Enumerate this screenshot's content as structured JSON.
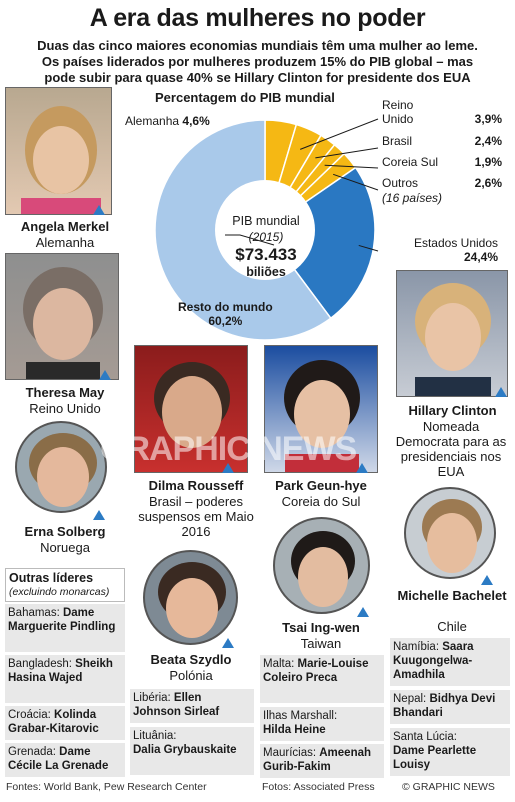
{
  "header": {
    "title": "A era das mulheres no poder",
    "subtitle_lines": [
      "Duas das cinco maiores economias mundiais têm uma mulher ao leme.",
      "Os países liderados por mulheres produzem 15% do PIB global – mas",
      "pode subir para quase 40% se Hillary Clinton for presidente dos EUA"
    ]
  },
  "chart_data": {
    "type": "pie",
    "title": "Percentagem do PIB mundial",
    "center_label": "PIB mundial",
    "center_year": "(2015)",
    "center_value": "$73.433",
    "center_unit": "biliões",
    "slices": [
      {
        "label": "Alemanha",
        "value": 4.6,
        "display": "4,6%",
        "color": "#f5b814"
      },
      {
        "label": "Reino Unido",
        "value": 3.9,
        "display": "3,9%",
        "color": "#f5b814"
      },
      {
        "label": "Brasil",
        "value": 2.4,
        "display": "2,4%",
        "color": "#f5b814"
      },
      {
        "label": "Coreia Sul",
        "value": 1.9,
        "display": "1,9%",
        "color": "#f5b814"
      },
      {
        "label": "Outros",
        "value": 2.6,
        "display": "2,6%",
        "color": "#f5b814",
        "note": "(16 países)"
      },
      {
        "label": "Estados Unidos",
        "value": 24.4,
        "display": "24,4%",
        "color": "#2a78c2"
      },
      {
        "label": "Resto do mundo",
        "value": 60.2,
        "display": "60,2%",
        "color": "#a9c9ea"
      }
    ]
  },
  "leaders": {
    "merkel": {
      "name": "Angela Merkel",
      "country": "Alemanha"
    },
    "may": {
      "name": "Theresa May",
      "country": "Reino Unido"
    },
    "solberg": {
      "name": "Erna Solberg",
      "country": "Noruega"
    },
    "clinton": {
      "name": "Hillary Clinton",
      "role": "Nomeada Democrata para as presidenciais nos EUA"
    },
    "rousseff": {
      "name": "Dilma Rousseff",
      "role": "Brasil – poderes suspensos em Maio 2016"
    },
    "park": {
      "name": "Park Geun-hye",
      "country": "Coreia do Sul"
    },
    "szydlo": {
      "name": "Beata Szydlo",
      "country": "Polónia"
    },
    "tsai": {
      "name": "Tsai Ing-wen",
      "country": "Taiwan"
    },
    "bachelet": {
      "name": "Michelle Bachelet",
      "country": "Chile"
    }
  },
  "other_leaders": {
    "heading": "Outras líderes",
    "note": "(excluindo monarcas)",
    "items": [
      {
        "country": "Bahamas:",
        "name": "Dame Marguerite Pindling"
      },
      {
        "country": "Bangladesh:",
        "name": "Sheikh Hasina Wajed"
      },
      {
        "country": "Croácia:",
        "name": "Kolinda Grabar-Kitarovic"
      },
      {
        "country": "Grenada:",
        "name": "Dame Cécile La Grenade"
      },
      {
        "country": "Libéria:",
        "name": "Ellen Johnson Sirleaf"
      },
      {
        "country": "Lituânia:",
        "name": "Dalia Grybauskaite"
      },
      {
        "country": "Malta:",
        "name": "Marie-Louise Coleiro Preca"
      },
      {
        "country": "Ilhas Marshall:",
        "name": "Hilda Heine"
      },
      {
        "country": "Maurícias:",
        "name": "Ameenah Gurib-Fakim"
      },
      {
        "country": "Namíbia:",
        "name": "Saara Kuugongelwa-Amadhila"
      },
      {
        "country": "Nepal:",
        "name": "Bidhya Devi Bhandari"
      },
      {
        "country": "Santa Lúcia:",
        "name": "Dame Pearlette Louisy"
      }
    ]
  },
  "watermark": "GRAPHIC NEWS",
  "footer": {
    "sources": "Fontes: World Bank, Pew Research Center",
    "photos": "Fotos: Associated Press",
    "copyright": "© GRAPHIC NEWS"
  }
}
